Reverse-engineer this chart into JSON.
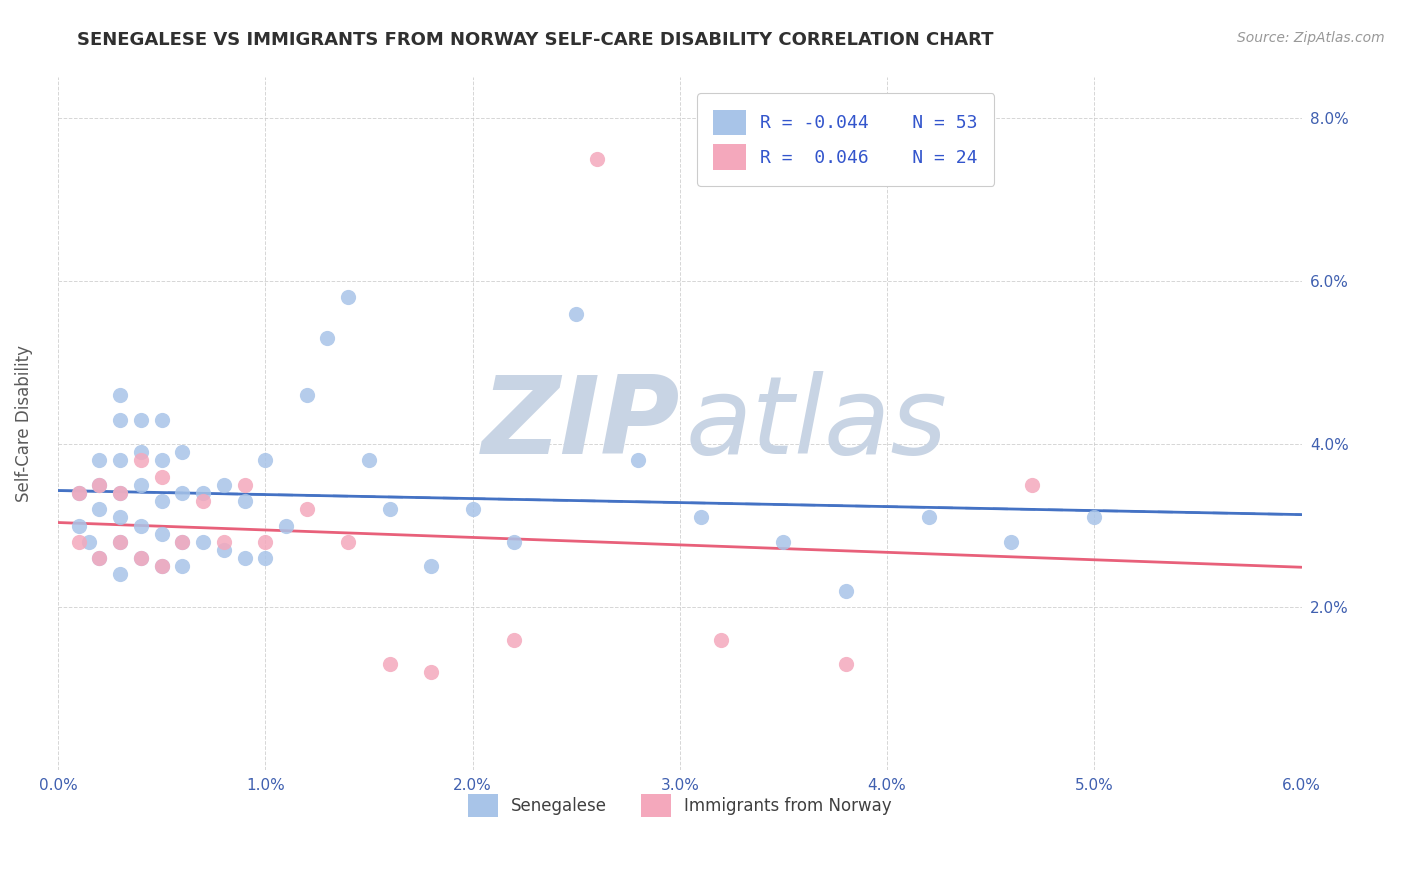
{
  "title": "SENEGALESE VS IMMIGRANTS FROM NORWAY SELF-CARE DISABILITY CORRELATION CHART",
  "source_text": "Source: ZipAtlas.com",
  "ylabel": "Self-Care Disability",
  "xlim": [
    0.0,
    0.06
  ],
  "ylim": [
    0.0,
    0.085
  ],
  "xticks": [
    0.0,
    0.01,
    0.02,
    0.03,
    0.04,
    0.05,
    0.06
  ],
  "xticklabels": [
    "0.0%",
    "1.0%",
    "2.0%",
    "3.0%",
    "4.0%",
    "5.0%",
    "6.0%"
  ],
  "yticks": [
    0.0,
    0.02,
    0.04,
    0.06,
    0.08
  ],
  "yticklabels_right": [
    "",
    "2.0%",
    "4.0%",
    "6.0%",
    "8.0%"
  ],
  "legend_r1": "-0.044",
  "legend_n1": "53",
  "legend_r2": " 0.046",
  "legend_n2": "24",
  "color_blue": "#a8c4e8",
  "color_pink": "#f4a8bc",
  "line_blue": "#4472c4",
  "line_pink": "#e8607a",
  "title_color": "#303030",
  "axis_color": "#5a5a5a",
  "tick_label_color": "#4060b0",
  "grid_color": "#cccccc",
  "watermark_color": "#c8d4e4",
  "legend_text_color": "#3355cc",
  "bottom_legend_labels": [
    "Senegalese",
    "Immigrants from Norway"
  ],
  "blue_x": [
    0.001,
    0.001,
    0.0015,
    0.002,
    0.002,
    0.002,
    0.002,
    0.003,
    0.003,
    0.003,
    0.003,
    0.003,
    0.003,
    0.003,
    0.004,
    0.004,
    0.004,
    0.004,
    0.004,
    0.005,
    0.005,
    0.005,
    0.005,
    0.005,
    0.006,
    0.006,
    0.006,
    0.006,
    0.007,
    0.007,
    0.008,
    0.008,
    0.009,
    0.009,
    0.01,
    0.01,
    0.011,
    0.012,
    0.013,
    0.014,
    0.015,
    0.016,
    0.018,
    0.02,
    0.022,
    0.025,
    0.028,
    0.031,
    0.035,
    0.038,
    0.042,
    0.046,
    0.05
  ],
  "blue_y": [
    0.03,
    0.034,
    0.028,
    0.026,
    0.032,
    0.035,
    0.038,
    0.024,
    0.028,
    0.031,
    0.034,
    0.038,
    0.043,
    0.046,
    0.026,
    0.03,
    0.035,
    0.039,
    0.043,
    0.025,
    0.029,
    0.033,
    0.038,
    0.043,
    0.025,
    0.028,
    0.034,
    0.039,
    0.028,
    0.034,
    0.027,
    0.035,
    0.026,
    0.033,
    0.026,
    0.038,
    0.03,
    0.046,
    0.053,
    0.058,
    0.038,
    0.032,
    0.025,
    0.032,
    0.028,
    0.056,
    0.038,
    0.031,
    0.028,
    0.022,
    0.031,
    0.028,
    0.031
  ],
  "pink_x": [
    0.001,
    0.001,
    0.002,
    0.002,
    0.003,
    0.003,
    0.004,
    0.004,
    0.005,
    0.005,
    0.006,
    0.007,
    0.008,
    0.009,
    0.01,
    0.012,
    0.014,
    0.016,
    0.018,
    0.022,
    0.026,
    0.032,
    0.038,
    0.047
  ],
  "pink_y": [
    0.028,
    0.034,
    0.026,
    0.035,
    0.028,
    0.034,
    0.026,
    0.038,
    0.025,
    0.036,
    0.028,
    0.033,
    0.028,
    0.035,
    0.028,
    0.032,
    0.028,
    0.013,
    0.012,
    0.016,
    0.075,
    0.016,
    0.013,
    0.035
  ]
}
